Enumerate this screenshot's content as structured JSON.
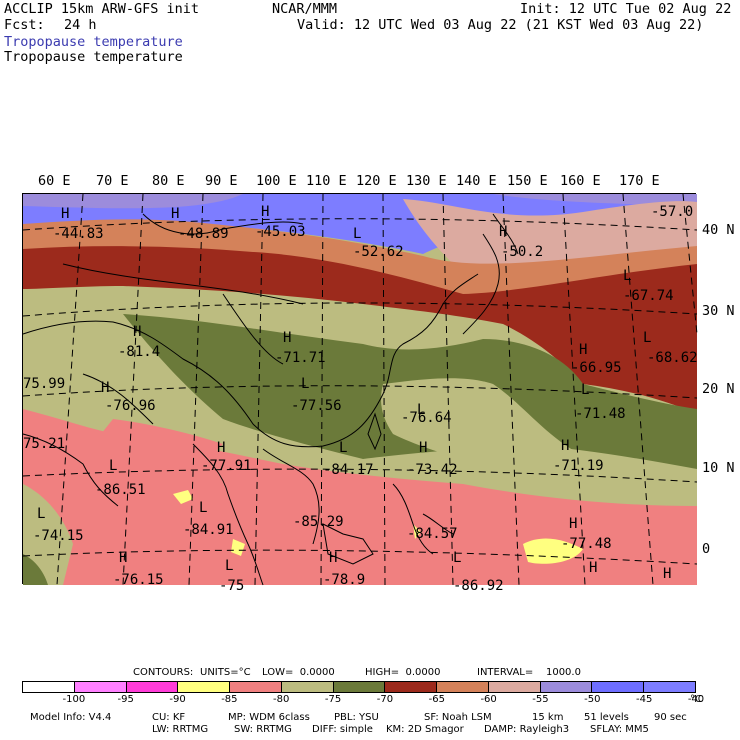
{
  "header": {
    "model": "ACCLIP 15km ARW-GFS init",
    "fcst_label": "Fcst:",
    "fcst_value": "24 h",
    "org": "NCAR/MMM",
    "init": "Init: 12 UTC Tue 02 Aug 22",
    "valid": "Valid: 12 UTC Wed 03 Aug 22 (21 KST Wed 03 Aug 22)",
    "field_title_1": "Tropopause temperature",
    "field_title_2": "Tropopause temperature"
  },
  "map": {
    "longitude_labels": [
      "60 E",
      "70 E",
      "80 E",
      "90 E",
      "100 E",
      "110 E",
      "120 E",
      "130 E",
      "140 E",
      "150 E",
      "160 E",
      "170 E"
    ],
    "latitude_labels": [
      "40 N",
      "30 N",
      "20 N",
      "10 N",
      "0"
    ],
    "extrema": [
      {
        "mark": "H",
        "value": "-44.83"
      },
      {
        "mark": "H",
        "value": "-48.89"
      },
      {
        "mark": "H",
        "value": "-45.03"
      },
      {
        "mark": "L",
        "value": "-52.62"
      },
      {
        "mark": "H",
        "value": "-50.2"
      },
      {
        "mark": "",
        "value": "-57.0"
      },
      {
        "mark": "L",
        "value": "-67.74"
      },
      {
        "mark": "H",
        "value": "-81.4"
      },
      {
        "mark": "H",
        "value": "-71.71"
      },
      {
        "mark": "H",
        "value": "-66.95"
      },
      {
        "mark": "L",
        "value": "-68.62"
      },
      {
        "mark": "",
        "value": "75.99"
      },
      {
        "mark": "H",
        "value": "-76.96"
      },
      {
        "mark": "L",
        "value": "-77.56"
      },
      {
        "mark": "L",
        "value": "-76.64"
      },
      {
        "mark": "L",
        "value": "-71.48"
      },
      {
        "mark": "",
        "value": "75.21"
      },
      {
        "mark": "H",
        "value": "-77.91"
      },
      {
        "mark": "L",
        "value": "-84.17"
      },
      {
        "mark": "H",
        "value": "-73.42"
      },
      {
        "mark": "H",
        "value": "-71.19"
      },
      {
        "mark": "L",
        "value": "-86.51"
      },
      {
        "mark": "L",
        "value": "-84.91"
      },
      {
        "mark": "",
        "value": "-85.29"
      },
      {
        "mark": "",
        "value": "-84.57"
      },
      {
        "mark": "H",
        "value": "-77.48"
      },
      {
        "mark": "L",
        "value": "-74.15"
      },
      {
        "mark": "H",
        "value": "-76.15"
      },
      {
        "mark": "L",
        "value": "-75"
      },
      {
        "mark": "H",
        "value": "-78.9"
      },
      {
        "mark": "L",
        "value": "-86.92"
      },
      {
        "mark": "H",
        "value": ""
      },
      {
        "mark": "H",
        "value": ""
      }
    ]
  },
  "contours_line": {
    "contours": "CONTOURS:",
    "units": "UNITS=°C",
    "low": "LOW=  0.0000",
    "high": "HIGH=  0.0000",
    "interval": "INTERVAL=    1000.0"
  },
  "colorbar": {
    "colors": [
      "#ffffff",
      "#ff80ff",
      "#ff3cd8",
      "#ffff80",
      "#f08080",
      "#bcbc80",
      "#6b7a3a",
      "#9c2a1c",
      "#d4825a",
      "#dcaaa0",
      "#9c8cdc",
      "#6e6eff",
      "#7d7dff"
    ],
    "labels": [
      "-100",
      "-95",
      "-90",
      "-85",
      "-80",
      "-75",
      "-70",
      "-65",
      "-60",
      "-55",
      "-50",
      "-45",
      "-40",
      "°C"
    ]
  },
  "footer": {
    "line1": [
      "Model Info: V4.4",
      "CU: KF",
      "MP: WDM 6class",
      "PBL: YSU",
      "SF: Noah LSM",
      "15 km",
      "51 levels",
      "90 sec"
    ],
    "line2": [
      "LW: RRTMG",
      "SW: RRTMG",
      "DIFF: simple",
      "KM: 2D Smagor",
      "DAMP: Rayleigh3",
      "SFLAY: MM5"
    ]
  }
}
